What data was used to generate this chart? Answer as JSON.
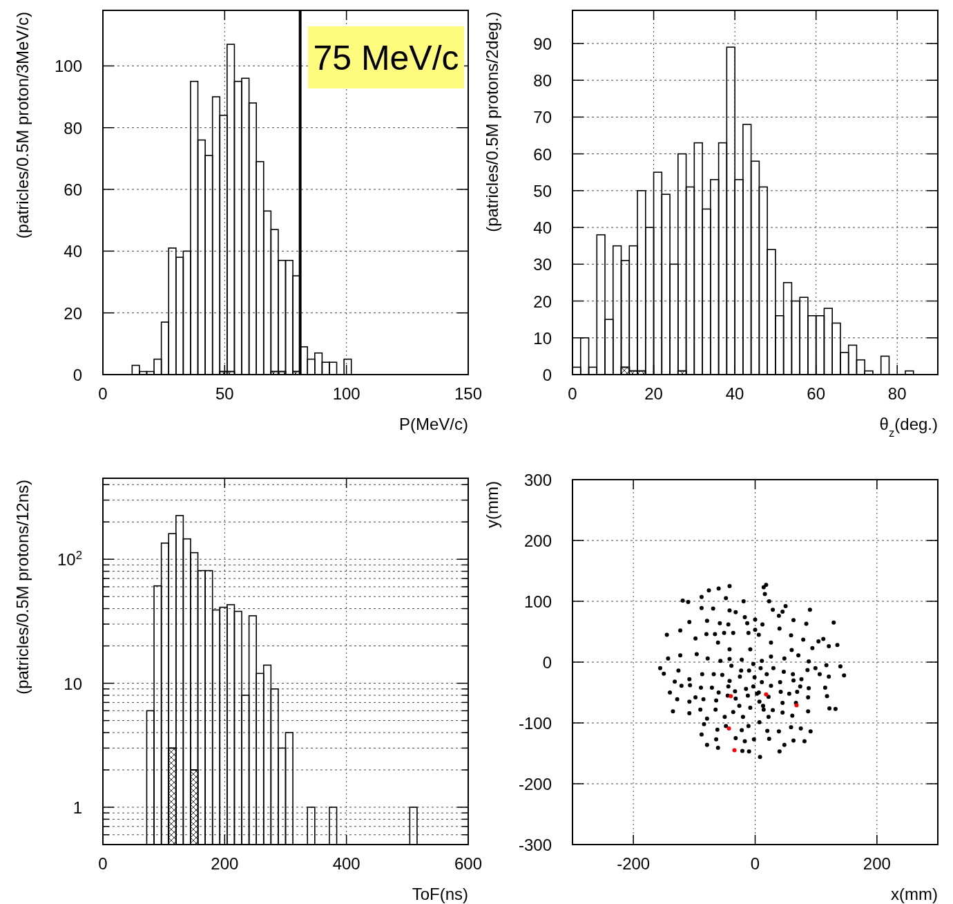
{
  "chart_data": [
    {
      "type": "histogram",
      "xlabel": "P(MeV/c)",
      "ylabel": "(patricles/0.5M proton/3MeV/c)",
      "bins": [
        0,
        3,
        6,
        9,
        12,
        15,
        18,
        21,
        24,
        27,
        30,
        33,
        36,
        39,
        42,
        45,
        48,
        51,
        54,
        57,
        60,
        63,
        66,
        69,
        72,
        75,
        78,
        81,
        84,
        87,
        90,
        93,
        96,
        99,
        102,
        105,
        108,
        111,
        114,
        117,
        120,
        123,
        126,
        129,
        132,
        135,
        138,
        141,
        144,
        147,
        150
      ],
      "series": [
        {
          "color": "#000000",
          "values": [
            0,
            0,
            0,
            0,
            3,
            1,
            1,
            5,
            17,
            41,
            38,
            40,
            95,
            76,
            71,
            90,
            84,
            107,
            95,
            96,
            88,
            69,
            53,
            47,
            37,
            37,
            32,
            9,
            5,
            7,
            4,
            4,
            0,
            5,
            0,
            0,
            0,
            0,
            0,
            0,
            0,
            0,
            0,
            0,
            0,
            0,
            0,
            0,
            0,
            0
          ]
        },
        {
          "color": "#000000",
          "values": [
            0,
            0,
            0,
            0,
            0,
            0,
            0,
            0,
            0,
            0,
            0,
            0,
            0,
            0,
            0,
            0,
            1,
            1,
            0,
            0,
            0,
            0,
            0,
            1,
            1,
            0,
            1,
            0,
            0,
            0,
            0,
            0,
            0,
            0,
            0,
            0,
            0,
            0,
            0,
            0,
            0,
            0,
            0,
            0,
            0,
            0,
            0,
            0,
            0,
            0
          ]
        }
      ],
      "xlim": [
        0,
        150
      ],
      "xticks": [
        0,
        50,
        100,
        150
      ],
      "ylim": [
        0,
        118
      ],
      "yticks": [
        0,
        20,
        40,
        60,
        80,
        100
      ],
      "grid": true,
      "ref_lines": [
        {
          "axis": "x",
          "value": 81,
          "color": "#000000"
        }
      ],
      "annotations": [
        "75 MeV/c"
      ]
    },
    {
      "type": "histogram",
      "xlabel": "θ$_{z}$(deg.)",
      "ylabel": "(patricles/0.5M protons/2deg.)",
      "bins": [
        0,
        2,
        4,
        6,
        8,
        10,
        12,
        14,
        16,
        18,
        20,
        22,
        24,
        26,
        28,
        30,
        32,
        34,
        36,
        38,
        40,
        42,
        44,
        46,
        48,
        50,
        52,
        54,
        56,
        58,
        60,
        62,
        64,
        66,
        68,
        70,
        72,
        74,
        76,
        78,
        80,
        82,
        84,
        86,
        88,
        90
      ],
      "series": [
        {
          "color": "#000000",
          "values": [
            2,
            10,
            2,
            38,
            15,
            35,
            31,
            35,
            50,
            40,
            55,
            49,
            30,
            60,
            51,
            63,
            45,
            53,
            63,
            89,
            53,
            68,
            58,
            51,
            34,
            16,
            25,
            20,
            21,
            16,
            16,
            18,
            14,
            6,
            8,
            4,
            1,
            0,
            5,
            0,
            0,
            1,
            0,
            0,
            0
          ]
        },
        {
          "color": "#000000",
          "values": [
            0,
            0,
            0,
            0,
            0,
            0,
            2,
            1,
            1,
            0,
            0,
            0,
            0,
            1,
            0,
            0,
            0,
            0,
            0,
            0,
            0,
            0,
            0,
            0,
            0,
            0,
            0,
            0,
            0,
            0,
            0,
            0,
            0,
            0,
            0,
            0,
            0,
            0,
            0,
            0,
            0,
            0,
            0,
            0,
            0
          ]
        }
      ],
      "xlim": [
        0,
        90
      ],
      "xticks": [
        0,
        20,
        40,
        60,
        80
      ],
      "ylim": [
        0,
        99
      ],
      "yticks": [
        0,
        10,
        20,
        30,
        40,
        50,
        60,
        70,
        80,
        90
      ],
      "grid": true
    },
    {
      "type": "histogram",
      "xlabel": "ToF(ns)",
      "ylabel": "(patricles/0.5M protons/12ns)",
      "log": true,
      "bins": [
        0,
        12,
        24,
        36,
        48,
        60,
        72,
        84,
        96,
        108,
        120,
        132,
        144,
        156,
        168,
        180,
        192,
        204,
        216,
        228,
        240,
        252,
        264,
        276,
        288,
        300,
        312,
        324,
        336,
        348,
        360,
        372,
        384,
        396,
        408,
        420,
        432,
        444,
        456,
        468,
        480,
        492,
        504,
        516,
        528,
        540,
        552,
        564,
        576,
        588,
        600
      ],
      "series": [
        {
          "color": "#000000",
          "values": [
            null,
            null,
            null,
            null,
            null,
            null,
            6,
            61,
            135,
            161,
            225,
            146,
            113,
            81,
            81,
            39,
            41,
            43,
            38,
            8,
            35,
            12,
            14,
            9,
            3,
            4,
            null,
            null,
            1,
            null,
            null,
            1,
            null,
            null,
            null,
            null,
            null,
            null,
            null,
            null,
            null,
            null,
            1,
            null,
            null,
            null,
            null,
            null,
            null,
            null
          ]
        },
        {
          "color": "#000000",
          "values": [
            null,
            null,
            null,
            null,
            null,
            null,
            null,
            null,
            null,
            3,
            null,
            null,
            2,
            null,
            null,
            null,
            null,
            null,
            null,
            null,
            null,
            null,
            null,
            null,
            null,
            null,
            null,
            null,
            null,
            null,
            null,
            null,
            null,
            null,
            null,
            null,
            null,
            null,
            null,
            null,
            null,
            null,
            null,
            null,
            null,
            null,
            null,
            null,
            null,
            null
          ]
        }
      ],
      "xlim": [
        0,
        600
      ],
      "xticks": [
        0,
        200,
        400,
        600
      ],
      "ylim": [
        0.5,
        450
      ],
      "yticks": [
        {
          "value": 0.6,
          "label": null
        },
        {
          "value": 0.7,
          "label": null
        },
        {
          "value": 0.8,
          "label": null
        },
        {
          "value": 0.9,
          "label": null
        },
        1,
        {
          "value": 2,
          "label": null
        },
        {
          "value": 3,
          "label": null
        },
        {
          "value": 4,
          "label": null
        },
        {
          "value": 5,
          "label": null
        },
        {
          "value": 6,
          "label": null
        },
        {
          "value": 7,
          "label": null
        },
        {
          "value": 8,
          "label": null
        },
        {
          "value": 9,
          "label": null
        },
        10,
        {
          "value": 20,
          "label": null
        },
        {
          "value": 30,
          "label": null
        },
        {
          "value": 40,
          "label": null
        },
        {
          "value": 50,
          "label": null
        },
        {
          "value": 60,
          "label": null
        },
        {
          "value": 70,
          "label": null
        },
        {
          "value": 80,
          "label": null
        },
        {
          "value": 90,
          "label": null
        },
        {
          "value": 100,
          "label": "10$^{2}$"
        },
        {
          "value": 200,
          "label": null
        },
        {
          "value": 300,
          "label": null
        },
        {
          "value": 400,
          "label": null
        }
      ],
      "grid": true
    },
    {
      "type": "scatter",
      "xlabel": "x(mm)",
      "ylabel": "y(mm)",
      "marker": "circle",
      "series": [
        {
          "color": "#000000",
          "x": [
            -42,
            -60,
            -76,
            18,
            14,
            16,
            -88,
            -48,
            -119,
            -110,
            -19,
            23,
            -88,
            -69,
            -42,
            -32,
            29,
            45,
            50,
            90,
            39,
            -108,
            -79,
            -58,
            -44,
            -17,
            -13,
            0,
            12,
            63,
            84,
            129,
            -145,
            -123,
            -98,
            -80,
            -66,
            -51,
            -36,
            -11,
            0,
            6,
            40,
            59,
            79,
            104,
            112,
            121,
            135,
            94,
            -143,
            -123,
            -96,
            -78,
            -57,
            -42,
            -22,
            -3,
            11,
            26,
            48,
            60,
            71,
            88,
            99,
            117,
            140,
            146,
            -156,
            -150,
            -126,
            -108,
            -87,
            -68,
            -54,
            -42,
            -25,
            -10,
            9,
            19,
            30,
            47,
            62,
            76,
            86,
            106,
            121,
            -140,
            -132,
            -121,
            -107,
            -89,
            -71,
            -60,
            -44,
            -33,
            -15,
            -3,
            11,
            26,
            41,
            63,
            74,
            88,
            115,
            -128,
            -108,
            -98,
            -85,
            -64,
            -45,
            -32,
            -12,
            6,
            22,
            42,
            56,
            69,
            87,
            118,
            -135,
            -108,
            -90,
            -79,
            -65,
            -36,
            -26,
            -8,
            13,
            29,
            45,
            61,
            87,
            122,
            132,
            -84,
            -62,
            -48,
            -22,
            -11,
            7,
            20,
            39,
            59,
            75,
            91,
            -88,
            -64,
            -32,
            -17,
            -2,
            23,
            48,
            63,
            81,
            -79,
            -61,
            -21,
            -10,
            8,
            40,
            -1,
            3,
            7,
            14,
            22,
            -20,
            -50,
            45,
            67,
            -23,
            -39,
            26,
            -8,
            -42,
            -61
          ],
          "values": [
            125,
            121,
            118,
            127,
            123,
            112,
            107,
            105,
            101,
            99,
            100,
            100,
            89,
            88,
            85,
            82,
            86,
            83,
            92,
            86,
            76,
            66,
            68,
            64,
            62,
            74,
            64,
            70,
            62,
            69,
            63,
            65,
            45,
            52,
            39,
            46,
            46,
            48,
            48,
            48,
            53,
            45,
            55,
            44,
            37,
            34,
            38,
            26,
            28,
            23,
            6,
            11,
            13,
            6,
            2,
            5,
            4,
            -3,
            2,
            9,
            6,
            20,
            11,
            1,
            -10,
            -5,
            -7,
            -22,
            -10,
            -19,
            -14,
            -28,
            -20,
            -20,
            -21,
            -31,
            -24,
            -14,
            -10,
            -20,
            -10,
            -16,
            -20,
            -28,
            -13,
            -20,
            -24,
            -50,
            -32,
            -39,
            -38,
            -42,
            -42,
            -50,
            -40,
            -48,
            -44,
            -40,
            -33,
            -39,
            -33,
            -30,
            -40,
            -43,
            -42,
            -61,
            -65,
            -58,
            -61,
            -63,
            -55,
            -60,
            -55,
            -50,
            -57,
            -49,
            -52,
            -49,
            -58,
            -56,
            -81,
            -84,
            -78,
            -93,
            -78,
            -82,
            -72,
            -75,
            -72,
            -79,
            -83,
            -88,
            -81,
            -76,
            -77,
            -102,
            -111,
            -105,
            -112,
            -105,
            -99,
            -113,
            -114,
            -107,
            -109,
            -114,
            -119,
            -127,
            -125,
            -130,
            -127,
            -126,
            -136,
            -129,
            -130,
            -136,
            -141,
            -146,
            -147,
            -156,
            -147,
            -25,
            -52,
            -65,
            -78,
            -90,
            -90,
            -90,
            -67,
            -67,
            -14,
            -6,
            32,
            21,
            21,
            32
          ]
        },
        {
          "color": "#ff0000",
          "x": [
            -40,
            18,
            68,
            -43,
            -34
          ],
          "values": [
            -56,
            -53,
            -71,
            -109,
            -145
          ]
        }
      ],
      "xlim": [
        -300,
        300
      ],
      "xticks": [
        -200,
        0,
        200
      ],
      "ylim": [
        -300,
        300
      ],
      "yticks": [
        -300,
        -200,
        -100,
        0,
        100,
        200,
        300
      ],
      "grid": true
    }
  ]
}
